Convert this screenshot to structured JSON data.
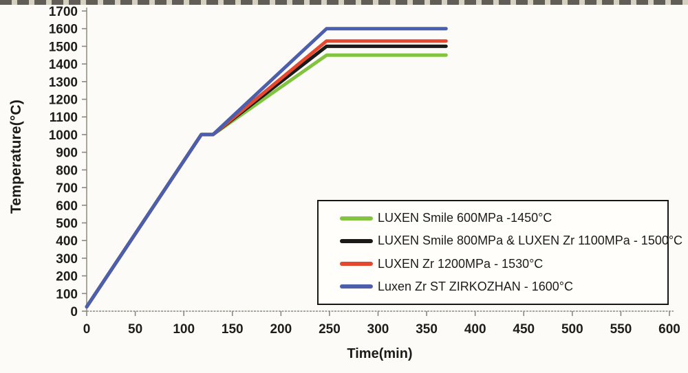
{
  "chart_data": {
    "type": "line",
    "title": "",
    "xlabel": "Time(min)",
    "ylabel": "Temperature(°C)",
    "xlim": [
      0,
      600
    ],
    "ylim": [
      0,
      1700
    ],
    "x_ticks": [
      0,
      50,
      100,
      150,
      200,
      250,
      300,
      350,
      400,
      450,
      500,
      550,
      600
    ],
    "y_ticks": [
      0,
      100,
      200,
      300,
      400,
      500,
      600,
      700,
      800,
      900,
      1000,
      1100,
      1200,
      1300,
      1400,
      1500,
      1600,
      1700
    ],
    "grid": false,
    "legend_position": "inside-bottom-right",
    "axis_color": "#9b9788",
    "tick_color": "#8a877c",
    "tick_label_color": "#1d1d1b",
    "series": [
      {
        "name": "LUXEN Smile 600MPa -1450°C",
        "color": "#82c43f",
        "points": [
          [
            0,
            25
          ],
          [
            118,
            1000
          ],
          [
            130,
            1000
          ],
          [
            247,
            1450
          ],
          [
            370,
            1450
          ]
        ]
      },
      {
        "name": "LUXEN Smile 800MPa & LUXEN Zr 1100MPa - 1500°C",
        "color": "#1a1a18",
        "points": [
          [
            0,
            25
          ],
          [
            118,
            1000
          ],
          [
            130,
            1000
          ],
          [
            247,
            1500
          ],
          [
            370,
            1500
          ]
        ]
      },
      {
        "name": "LUXEN Zr 1200MPa - 1530°C",
        "color": "#e5472f",
        "points": [
          [
            0,
            25
          ],
          [
            118,
            1000
          ],
          [
            130,
            1000
          ],
          [
            247,
            1530
          ],
          [
            370,
            1530
          ]
        ]
      },
      {
        "name": "Luxen Zr ST ZIRKOZHAN - 1600°C",
        "color": "#4c5fac",
        "points": [
          [
            0,
            25
          ],
          [
            118,
            1000
          ],
          [
            130,
            1000
          ],
          [
            247,
            1600
          ],
          [
            370,
            1600
          ]
        ]
      }
    ]
  }
}
